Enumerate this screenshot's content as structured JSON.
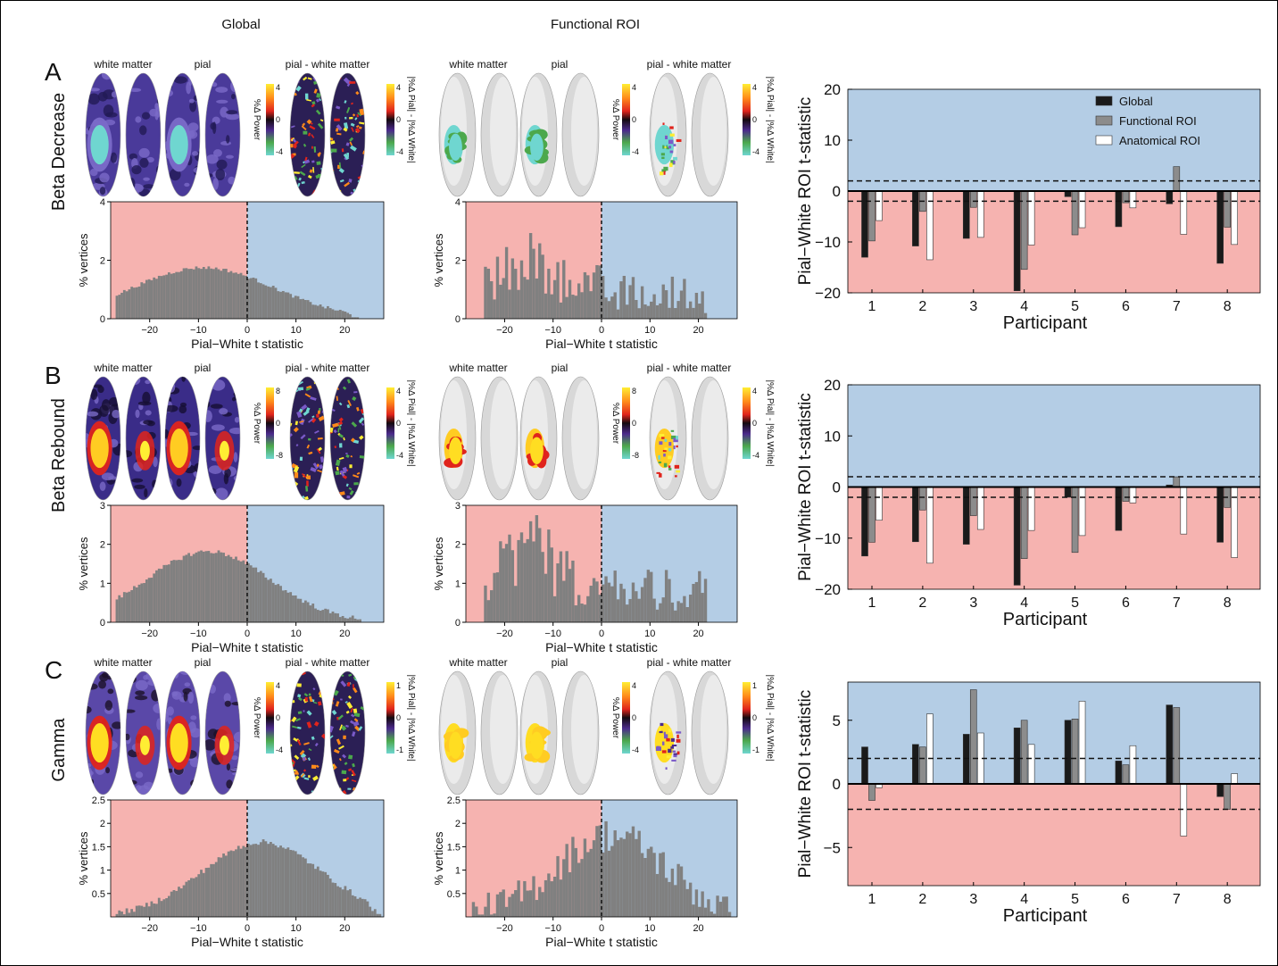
{
  "headers": {
    "global": "Global",
    "functional": "Functional ROI"
  },
  "brain_labels": {
    "white": "white matter",
    "pial": "pial",
    "diff": "pial - white matter"
  },
  "colorbar_labels": {
    "power": "%Δ Power",
    "diff": "|%Δ Pial| - |%Δ White|"
  },
  "hist_axis": {
    "xlabel": "Pial−White t statistic",
    "ylabel": "% vertices"
  },
  "bar_axis": {
    "xlabel": "Participant",
    "ylabel": "Pial−White ROI t-statistic"
  },
  "legend": [
    "Global",
    "Functional ROI",
    "Anatomical ROI"
  ],
  "colors": {
    "pink": "#f6b3b0",
    "blue": "#b4cde5",
    "hist": "#808080",
    "global": "#1a1a1a",
    "functional": "#8c8c8c",
    "anatomical": "#ffffff"
  },
  "rows": [
    {
      "letter": "A",
      "name": "Beta Decrease",
      "palette": "bd",
      "cb_power": [
        "4",
        "0",
        "-4"
      ],
      "cb_diff": [
        "4",
        "0",
        "-4"
      ],
      "hist_global": {
        "ylim": [
          0,
          4
        ],
        "yticks": [
          "0",
          "2",
          "4"
        ],
        "shape": "global_bd"
      },
      "hist_func": {
        "ylim": [
          0,
          4
        ],
        "yticks": [
          "0",
          "2",
          "4"
        ],
        "shape": "func_bd"
      },
      "bars": {
        "ylim": [
          -20,
          20
        ],
        "yticks": [
          "−20",
          "−10",
          "0",
          "10",
          "20"
        ],
        "threshold": 2,
        "participants": [
          "1",
          "2",
          "3",
          "4",
          "5",
          "6",
          "7",
          "8"
        ],
        "global": [
          -13,
          -10.8,
          -9.3,
          -19.6,
          -1.1,
          -7,
          -2.5,
          -14.2
        ],
        "functional": [
          -9.8,
          -4,
          -3.2,
          -15.4,
          -8.6,
          -2.3,
          4.8,
          -7.1
        ],
        "anatomical": [
          -5.8,
          -13.5,
          -9.1,
          -10.6,
          -7.2,
          -3.3,
          -8.5,
          -10.5
        ]
      }
    },
    {
      "letter": "B",
      "name": "Beta Rebound",
      "palette": "br",
      "cb_power": [
        "8",
        "0",
        "-8"
      ],
      "cb_diff": [
        "4",
        "0",
        "-4"
      ],
      "hist_global": {
        "ylim": [
          0,
          3
        ],
        "yticks": [
          "0",
          "1",
          "2",
          "3"
        ],
        "shape": "global_br"
      },
      "hist_func": {
        "ylim": [
          0,
          3
        ],
        "yticks": [
          "0",
          "1",
          "2",
          "3"
        ],
        "shape": "func_br"
      },
      "bars": {
        "ylim": [
          -20,
          20
        ],
        "yticks": [
          "−20",
          "−10",
          "0",
          "10",
          "20"
        ],
        "threshold": 2,
        "participants": [
          "1",
          "2",
          "3",
          "4",
          "5",
          "6",
          "7",
          "8"
        ],
        "global": [
          -13.5,
          -10.7,
          -11.2,
          -19.2,
          -2,
          -8.5,
          0.4,
          -10.8
        ],
        "functional": [
          -10.8,
          -4.5,
          -5.6,
          -14,
          -12.8,
          -2.8,
          2,
          -4
        ],
        "anatomical": [
          -6.5,
          -14.9,
          -8.3,
          -8.5,
          -9.5,
          -3.1,
          -9.2,
          -13.8
        ]
      }
    },
    {
      "letter": "C",
      "name": "Gamma",
      "palette": "gm",
      "cb_power": [
        "4",
        "0",
        "-4"
      ],
      "cb_diff": [
        "1",
        "0",
        "-1"
      ],
      "hist_global": {
        "ylim": [
          0,
          2.5
        ],
        "yticks": [
          "0.5",
          "1",
          "1.5",
          "2",
          "2.5"
        ],
        "shape": "global_gm"
      },
      "hist_func": {
        "ylim": [
          0,
          2.5
        ],
        "yticks": [
          "0.5",
          "1",
          "1.5",
          "2",
          "2.5"
        ],
        "shape": "func_gm"
      },
      "bars": {
        "ylim": [
          -8,
          8
        ],
        "yticks": [
          "−5",
          "0",
          "5"
        ],
        "threshold": 2,
        "participants": [
          "1",
          "2",
          "3",
          "4",
          "5",
          "6",
          "7",
          "8"
        ],
        "global": [
          2.9,
          3.1,
          3.9,
          4.4,
          5,
          1.8,
          6.2,
          -1
        ],
        "functional": [
          -1.3,
          2.9,
          7.4,
          5,
          5.1,
          1.5,
          6,
          -2
        ],
        "anatomical": [
          -0.3,
          5.5,
          4,
          3.1,
          6.5,
          3,
          -4.1,
          0.8
        ]
      }
    }
  ]
}
